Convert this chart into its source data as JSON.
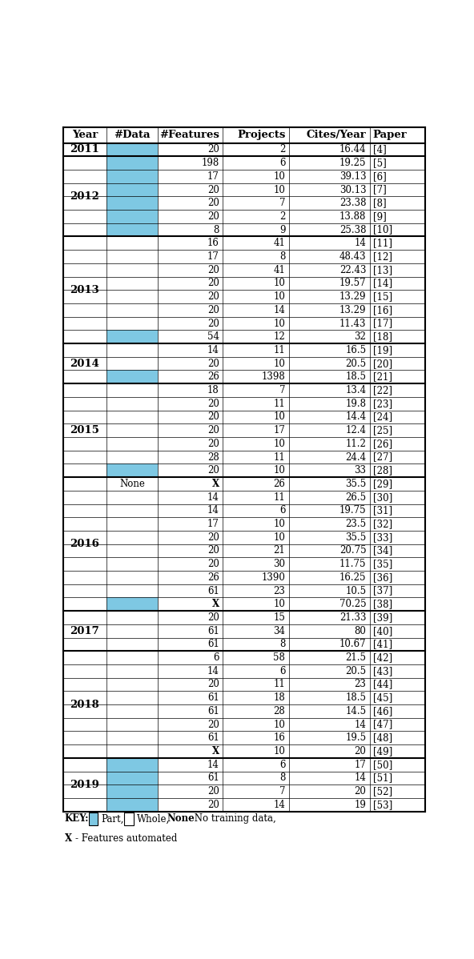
{
  "headers": [
    "Year",
    "#Data",
    "#Features",
    "Projects",
    "Cites/Year",
    "Paper"
  ],
  "rows": [
    {
      "year": "2011",
      "data_type": "part",
      "features": "20",
      "projects": "2",
      "cites": "16.44",
      "paper": "[4]"
    },
    {
      "year": "2012",
      "data_type": "part",
      "features": "198",
      "projects": "6",
      "cites": "19.25",
      "paper": "[5]"
    },
    {
      "year": "2012",
      "data_type": "part",
      "features": "17",
      "projects": "10",
      "cites": "39.13",
      "paper": "[6]"
    },
    {
      "year": "2012",
      "data_type": "part",
      "features": "20",
      "projects": "10",
      "cites": "30.13",
      "paper": "[7]"
    },
    {
      "year": "2012",
      "data_type": "part",
      "features": "20",
      "projects": "7",
      "cites": "23.38",
      "paper": "[8]"
    },
    {
      "year": "2012",
      "data_type": "part",
      "features": "20",
      "projects": "2",
      "cites": "13.88",
      "paper": "[9]"
    },
    {
      "year": "2012",
      "data_type": "part",
      "features": "8",
      "projects": "9",
      "cites": "25.38",
      "paper": "[10]"
    },
    {
      "year": "2013",
      "data_type": "whole",
      "features": "16",
      "projects": "41",
      "cites": "14",
      "paper": "[11]"
    },
    {
      "year": "2013",
      "data_type": "whole",
      "features": "17",
      "projects": "8",
      "cites": "48.43",
      "paper": "[12]"
    },
    {
      "year": "2013",
      "data_type": "whole",
      "features": "20",
      "projects": "41",
      "cites": "22.43",
      "paper": "[13]"
    },
    {
      "year": "2013",
      "data_type": "whole",
      "features": "20",
      "projects": "10",
      "cites": "19.57",
      "paper": "[14]"
    },
    {
      "year": "2013",
      "data_type": "whole",
      "features": "20",
      "projects": "10",
      "cites": "13.29",
      "paper": "[15]"
    },
    {
      "year": "2013",
      "data_type": "whole",
      "features": "20",
      "projects": "14",
      "cites": "13.29",
      "paper": "[16]"
    },
    {
      "year": "2013",
      "data_type": "whole",
      "features": "20",
      "projects": "10",
      "cites": "11.43",
      "paper": "[17]"
    },
    {
      "year": "2013",
      "data_type": "part",
      "features": "54",
      "projects": "12",
      "cites": "32",
      "paper": "[18]"
    },
    {
      "year": "2014",
      "data_type": "whole",
      "features": "14",
      "projects": "11",
      "cites": "16.5",
      "paper": "[19]"
    },
    {
      "year": "2014",
      "data_type": "whole",
      "features": "20",
      "projects": "10",
      "cites": "20.5",
      "paper": "[20]"
    },
    {
      "year": "2014",
      "data_type": "part",
      "features": "26",
      "projects": "1398",
      "cites": "18.5",
      "paper": "[21]"
    },
    {
      "year": "2015",
      "data_type": "whole",
      "features": "18",
      "projects": "7",
      "cites": "13.4",
      "paper": "[22]"
    },
    {
      "year": "2015",
      "data_type": "whole",
      "features": "20",
      "projects": "11",
      "cites": "19.8",
      "paper": "[23]"
    },
    {
      "year": "2015",
      "data_type": "whole",
      "features": "20",
      "projects": "10",
      "cites": "14.4",
      "paper": "[24]"
    },
    {
      "year": "2015",
      "data_type": "whole",
      "features": "20",
      "projects": "17",
      "cites": "12.4",
      "paper": "[25]"
    },
    {
      "year": "2015",
      "data_type": "whole",
      "features": "20",
      "projects": "10",
      "cites": "11.2",
      "paper": "[26]"
    },
    {
      "year": "2015",
      "data_type": "whole",
      "features": "28",
      "projects": "11",
      "cites": "24.4",
      "paper": "[27]"
    },
    {
      "year": "2015",
      "data_type": "part",
      "features": "20",
      "projects": "10",
      "cites": "33",
      "paper": "[28]"
    },
    {
      "year": "2016",
      "data_type": "none",
      "features": "X",
      "projects": "26",
      "cites": "35.5",
      "paper": "[29]"
    },
    {
      "year": "2016",
      "data_type": "whole",
      "features": "14",
      "projects": "11",
      "cites": "26.5",
      "paper": "[30]"
    },
    {
      "year": "2016",
      "data_type": "whole",
      "features": "14",
      "projects": "6",
      "cites": "19.75",
      "paper": "[31]"
    },
    {
      "year": "2016",
      "data_type": "whole",
      "features": "17",
      "projects": "10",
      "cites": "23.5",
      "paper": "[32]"
    },
    {
      "year": "2016",
      "data_type": "whole",
      "features": "20",
      "projects": "10",
      "cites": "35.5",
      "paper": "[33]"
    },
    {
      "year": "2016",
      "data_type": "whole",
      "features": "20",
      "projects": "21",
      "cites": "20.75",
      "paper": "[34]"
    },
    {
      "year": "2016",
      "data_type": "whole",
      "features": "20",
      "projects": "30",
      "cites": "11.75",
      "paper": "[35]"
    },
    {
      "year": "2016",
      "data_type": "whole",
      "features": "26",
      "projects": "1390",
      "cites": "16.25",
      "paper": "[36]"
    },
    {
      "year": "2016",
      "data_type": "whole",
      "features": "61",
      "projects": "23",
      "cites": "10.5",
      "paper": "[37]"
    },
    {
      "year": "2016",
      "data_type": "part",
      "features": "X",
      "projects": "10",
      "cites": "70.25",
      "paper": "[38]"
    },
    {
      "year": "2017",
      "data_type": "whole",
      "features": "20",
      "projects": "15",
      "cites": "21.33",
      "paper": "[39]"
    },
    {
      "year": "2017",
      "data_type": "whole",
      "features": "61",
      "projects": "34",
      "cites": "80",
      "paper": "[40]"
    },
    {
      "year": "2017",
      "data_type": "whole",
      "features": "61",
      "projects": "8",
      "cites": "10.67",
      "paper": "[41]"
    },
    {
      "year": "2018",
      "data_type": "whole",
      "features": "6",
      "projects": "58",
      "cites": "21.5",
      "paper": "[42]"
    },
    {
      "year": "2018",
      "data_type": "whole",
      "features": "14",
      "projects": "6",
      "cites": "20.5",
      "paper": "[43]"
    },
    {
      "year": "2018",
      "data_type": "whole",
      "features": "20",
      "projects": "11",
      "cites": "23",
      "paper": "[44]"
    },
    {
      "year": "2018",
      "data_type": "whole",
      "features": "61",
      "projects": "18",
      "cites": "18.5",
      "paper": "[45]"
    },
    {
      "year": "2018",
      "data_type": "whole",
      "features": "61",
      "projects": "28",
      "cites": "14.5",
      "paper": "[46]"
    },
    {
      "year": "2018",
      "data_type": "whole",
      "features": "20",
      "projects": "10",
      "cites": "14",
      "paper": "[47]"
    },
    {
      "year": "2018",
      "data_type": "part",
      "features": "61",
      "projects": "16",
      "cites": "19.5",
      "paper": "[48]"
    },
    {
      "year": "2018",
      "data_type": "whole",
      "features": "X",
      "projects": "10",
      "cites": "20",
      "paper": "[49]"
    },
    {
      "year": "2019",
      "data_type": "part",
      "features": "14",
      "projects": "6",
      "cites": "17",
      "paper": "[50]"
    },
    {
      "year": "2019",
      "data_type": "part",
      "features": "61",
      "projects": "8",
      "cites": "14",
      "paper": "[51]"
    },
    {
      "year": "2019",
      "data_type": "part",
      "features": "20",
      "projects": "7",
      "cites": "20",
      "paper": "[52]"
    },
    {
      "year": "2019",
      "data_type": "part",
      "features": "20",
      "projects": "14",
      "cites": "19",
      "paper": "[53]"
    }
  ],
  "year_groups": [
    {
      "year": "2011",
      "start": 0,
      "end": 0
    },
    {
      "year": "2012",
      "start": 1,
      "end": 6
    },
    {
      "year": "2013",
      "start": 7,
      "end": 14
    },
    {
      "year": "2014",
      "start": 15,
      "end": 17
    },
    {
      "year": "2015",
      "start": 18,
      "end": 24
    },
    {
      "year": "2016",
      "start": 25,
      "end": 34
    },
    {
      "year": "2017",
      "start": 35,
      "end": 37
    },
    {
      "year": "2018",
      "start": 38,
      "end": 45
    },
    {
      "year": "2019",
      "start": 46,
      "end": 49
    }
  ],
  "part_color": "#7EC8E3",
  "whole_color": "#FFFFFF",
  "col_proportions": [
    0.118,
    0.138,
    0.175,
    0.178,
    0.218,
    0.148
  ],
  "lw_thick": 1.5,
  "lw_thin": 0.5,
  "font_size_header": 9.5,
  "font_size_data": 8.5,
  "font_size_key": 8.5
}
